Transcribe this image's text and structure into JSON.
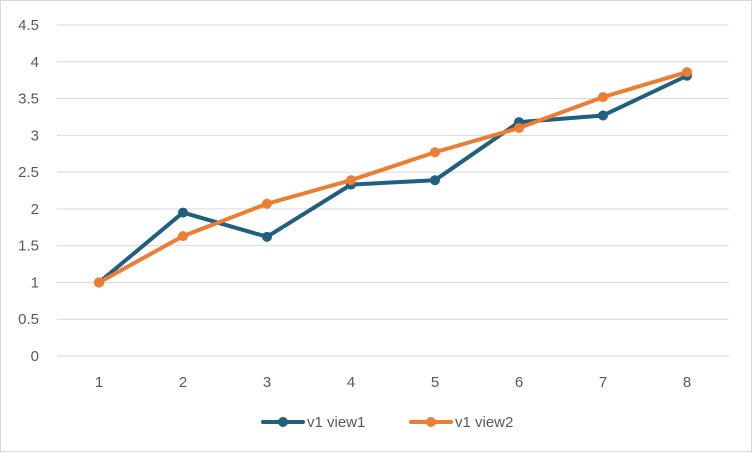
{
  "chart_data": {
    "type": "line",
    "title": "",
    "xlabel": "",
    "ylabel": "",
    "x": [
      1,
      2,
      3,
      4,
      5,
      6,
      7,
      8
    ],
    "ylim": [
      0,
      4.5
    ],
    "yticks": [
      0,
      0.5,
      1,
      1.5,
      2,
      2.5,
      3,
      3.5,
      4,
      4.5
    ],
    "grid": true,
    "legend_position": "bottom",
    "series": [
      {
        "name": "v1 view1",
        "color": "#1f5f7f",
        "values": [
          1.0,
          1.95,
          1.62,
          2.33,
          2.39,
          3.18,
          3.27,
          3.81
        ]
      },
      {
        "name": "v1 view2",
        "color": "#ed7d31",
        "values": [
          1.0,
          1.63,
          2.07,
          2.39,
          2.77,
          3.1,
          3.52,
          3.86
        ]
      }
    ]
  }
}
